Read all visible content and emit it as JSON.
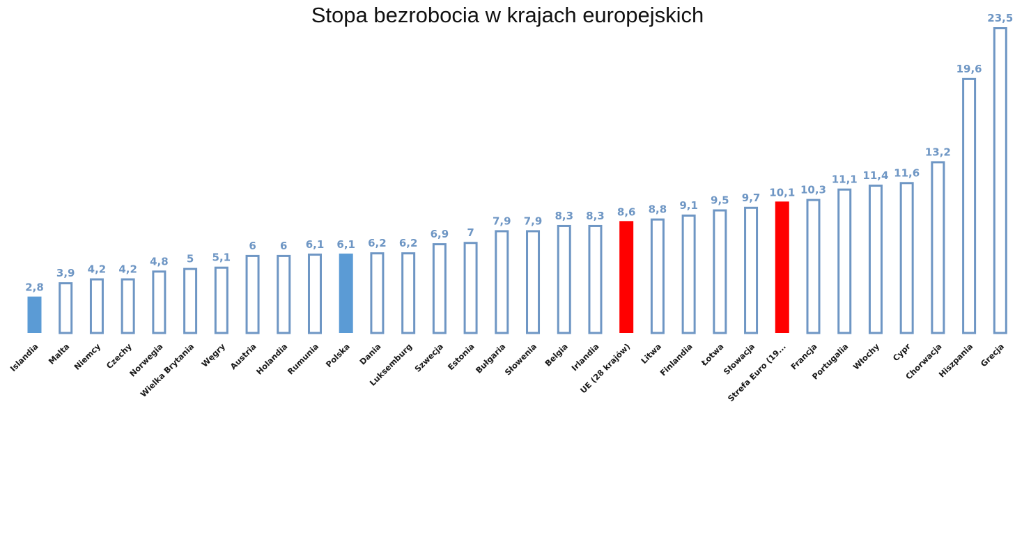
{
  "chart_data": {
    "type": "bar",
    "title": "Stopa bezrobocia w krajach europejskich",
    "xlabel": "",
    "ylabel": "",
    "ylim": [
      0,
      23.5
    ],
    "grid": false,
    "legend": "none",
    "categories": [
      "Islandia",
      "Malta",
      "Niemcy",
      "Czechy",
      "Norwegia",
      "Wielka Brytania",
      "Węgry",
      "Austria",
      "Holandia",
      "Rumunia",
      "Polska",
      "Dania",
      "Luksemburg",
      "Szwecja",
      "Estonia",
      "Bułgaria",
      "Słowenia",
      "Belgia",
      "Irlandia",
      "UE (28 krajów)",
      "Litwa",
      "Finlandia",
      "Łotwa",
      "Słowacja",
      "Strefa Euro (19...",
      "Francja",
      "Portugalia",
      "Włochy",
      "Cypr",
      "Chorwacja",
      "Hiszpania",
      "Grecja"
    ],
    "values": [
      2.8,
      3.9,
      4.2,
      4.2,
      4.8,
      5,
      5.1,
      6,
      6,
      6.1,
      6.1,
      6.2,
      6.2,
      6.9,
      7,
      7.9,
      7.9,
      8.3,
      8.3,
      8.6,
      8.8,
      9.1,
      9.5,
      9.7,
      10.1,
      10.3,
      11.1,
      11.4,
      11.6,
      13.2,
      19.6,
      23.5
    ],
    "value_labels": [
      "2,8",
      "3,9",
      "4,2",
      "4,2",
      "4,8",
      "5",
      "5,1",
      "6",
      "6",
      "6,1",
      "6,1",
      "6,2",
      "6,2",
      "6,9",
      "7",
      "7,9",
      "7,9",
      "8,3",
      "8,3",
      "8,6",
      "8,8",
      "9,1",
      "9,5",
      "9,7",
      "10,1",
      "10,3",
      "11,1",
      "11,4",
      "11,6",
      "13,2",
      "19,6",
      "23,5"
    ],
    "bar_styles": [
      "filled-blue",
      "outline",
      "outline",
      "outline",
      "outline",
      "outline",
      "outline",
      "outline",
      "outline",
      "outline",
      "filled-blue",
      "outline",
      "outline",
      "outline",
      "outline",
      "outline",
      "outline",
      "outline",
      "outline",
      "filled-red",
      "outline",
      "outline",
      "outline",
      "outline",
      "filled-red",
      "outline",
      "outline",
      "outline",
      "outline",
      "outline",
      "outline",
      "outline"
    ],
    "colors": {
      "outline": "#6e96c4",
      "filled-blue": "#5b9bd5",
      "filled-red": "#ff0000",
      "label": "#6e96c4",
      "category": "#1a1a1a"
    }
  }
}
